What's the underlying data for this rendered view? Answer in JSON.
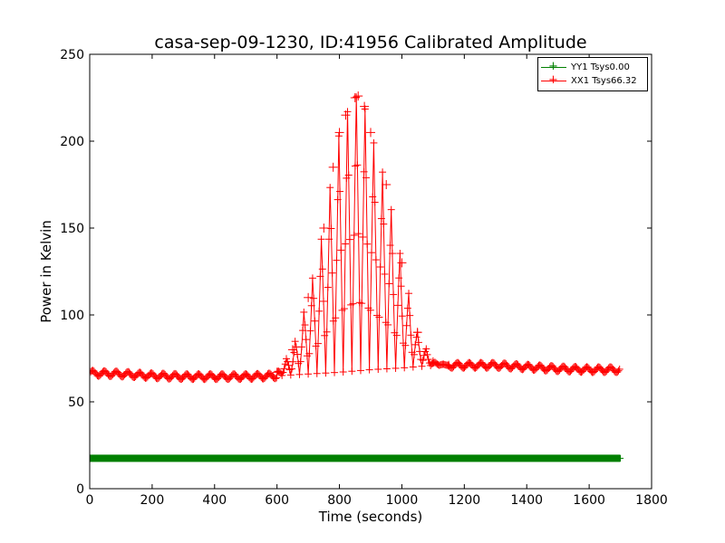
{
  "chart_data": {
    "type": "line",
    "title": "casa-sep-09-1230, ID:41956 Calibrated Amplitude",
    "xlabel": "Time (seconds)",
    "ylabel": "Power in Kelvin",
    "xlim": [
      0,
      1800
    ],
    "ylim": [
      0,
      250
    ],
    "xticks": [
      "0",
      "200",
      "400",
      "600",
      "800",
      "1000",
      "1200",
      "1400",
      "1600",
      "1800"
    ],
    "yticks": [
      "0",
      "50",
      "100",
      "150",
      "200",
      "250"
    ],
    "grid": false,
    "legend_position": "top-right",
    "series": [
      {
        "name": "YY1 Tsys0.00",
        "color": "#008000",
        "marker": "+",
        "x": [
          0,
          200,
          400,
          600,
          800,
          1000,
          1200,
          1400,
          1600,
          1700
        ],
        "values": [
          17.5,
          17.5,
          17.5,
          17.5,
          17.5,
          17.5,
          17.5,
          17.5,
          17.5,
          17.5
        ]
      },
      {
        "name": "XX1 Tsys66.32",
        "color": "#ff0000",
        "marker": "+",
        "baseline": {
          "x": [
            0,
            100,
            200,
            300,
            400,
            500,
            600,
            700,
            800,
            900,
            1000,
            1100,
            1200,
            1300,
            1400,
            1500,
            1600,
            1700
          ],
          "values": [
            66.5,
            66.0,
            65.0,
            64.5,
            64.5,
            64.5,
            65.0,
            66.0,
            67.0,
            68.5,
            69.5,
            71.0,
            71.0,
            71.0,
            70.0,
            69.0,
            68.5,
            68.5
          ]
        },
        "peaks": {
          "x": [
            600,
            650,
            700,
            750,
            780,
            800,
            820,
            850,
            860,
            880,
            900,
            950,
            1000,
            1050,
            1100,
            1150
          ],
          "values": [
            67,
            80,
            110,
            150,
            185,
            205,
            215,
            225,
            226,
            220,
            205,
            175,
            130,
            90,
            73,
            71
          ]
        }
      }
    ]
  }
}
